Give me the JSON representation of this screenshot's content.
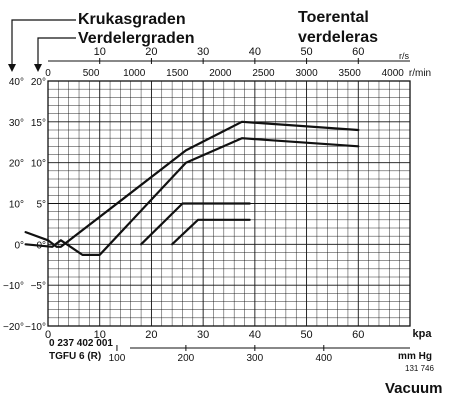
{
  "chart_data": {
    "type": "line",
    "title_left": [
      "Krukasgraden",
      "Verdelergraden"
    ],
    "title_right": [
      "Toerental",
      "verdeleras"
    ],
    "bottom_label": "Vacuum",
    "part_code": "0 237 402 001",
    "part_model": "TGFU 6 (R)",
    "figure_no": "131 746",
    "top_axis": {
      "rps": {
        "ticks": [
          "10",
          "20",
          "30",
          "40",
          "50",
          "60"
        ],
        "unit": "r/s",
        "range": [
          0,
          70
        ]
      },
      "rpm": {
        "ticks": [
          "0",
          "500",
          "1000",
          "1500",
          "2000",
          "2500",
          "3000",
          "3500",
          "4000"
        ],
        "unit": "r/min",
        "range": [
          0,
          4200
        ]
      }
    },
    "left_axis": {
      "crank_ticks": [
        "40°",
        "30°",
        "20°",
        "10°",
        "0°",
        "−10°",
        "−20°"
      ],
      "distributor_ticks": [
        "20°",
        "15°",
        "10°",
        "5°",
        "0°",
        "−5°",
        "−10°"
      ],
      "range_deg_distributor": [
        -10,
        20
      ]
    },
    "bottom_axis": {
      "kpa": {
        "ticks": [
          "0",
          "10",
          "20",
          "30",
          "40",
          "50",
          "60"
        ],
        "unit": "kpa",
        "range": [
          0,
          70
        ]
      },
      "mmhg": {
        "ticks": [
          "100",
          "200",
          "300",
          "400"
        ],
        "unit": "mm Hg"
      }
    },
    "series": [
      {
        "axis": "rpm",
        "points": [
          [
            -260,
            1.5
          ],
          [
            0,
            0.5
          ],
          [
            100,
            -0.3
          ],
          [
            150,
            -0.3
          ],
          [
            1600,
            11.5
          ],
          [
            2250,
            15
          ],
          [
            3600,
            14
          ]
        ]
      },
      {
        "axis": "rpm",
        "points": [
          [
            -260,
            0
          ],
          [
            50,
            -0.3
          ],
          [
            150,
            0.5
          ],
          [
            400,
            -1.3
          ],
          [
            600,
            -1.3
          ],
          [
            1600,
            10
          ],
          [
            2250,
            13
          ],
          [
            3600,
            12
          ]
        ]
      },
      {
        "axis": "kpa",
        "points": [
          [
            18,
            0
          ],
          [
            26,
            5
          ],
          [
            39,
            5
          ]
        ]
      },
      {
        "axis": "kpa",
        "points": [
          [
            24,
            0
          ],
          [
            29,
            3
          ],
          [
            39,
            3
          ]
        ]
      }
    ]
  }
}
